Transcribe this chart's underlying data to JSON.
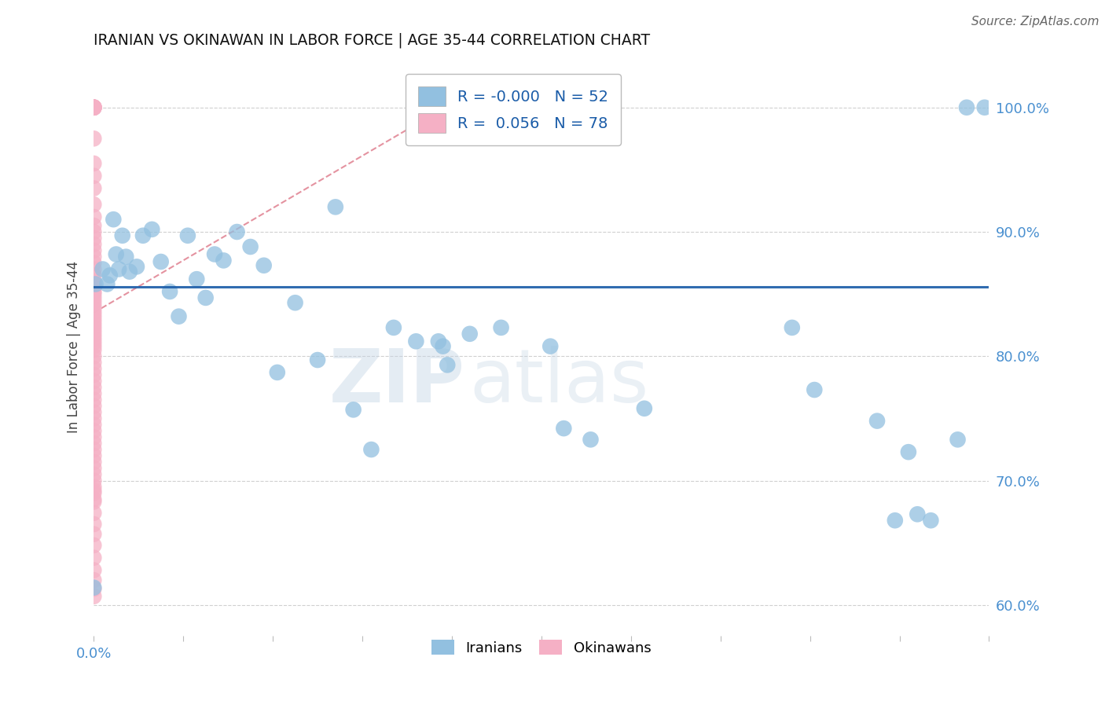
{
  "title": "IRANIAN VS OKINAWAN IN LABOR FORCE | AGE 35-44 CORRELATION CHART",
  "source": "Source: ZipAtlas.com",
  "ylabel": "In Labor Force | Age 35-44",
  "watermark_text": "ZIPatlas",
  "y_tick_positions": [
    0.6,
    0.7,
    0.8,
    0.9,
    1.0
  ],
  "y_tick_labels": [
    "60.0%",
    "70.0%",
    "80.0%",
    "90.0%",
    "100.0%"
  ],
  "x_tick_label_left": "0.0%",
  "x_tick_label_right": "",
  "xlim": [
    0.0,
    1.0
  ],
  "ylim": [
    0.575,
    1.04
  ],
  "legend_blue_r": "-0.000",
  "legend_blue_n": "52",
  "legend_pink_r": "0.056",
  "legend_pink_n": "78",
  "blue_color": "#92c0e0",
  "pink_color": "#f5b0c5",
  "blue_line_color": "#1a5ca8",
  "pink_line_color": "#e08090",
  "grid_color": "#d0d0d0",
  "title_color": "#111111",
  "tick_label_color": "#4a90d0",
  "blue_hline_y": 0.856,
  "pink_trend_x0": 0.0,
  "pink_trend_y0": 0.835,
  "pink_trend_x1": 0.44,
  "pink_trend_y1": 1.02,
  "blue_x": [
    0.0,
    0.002,
    0.01,
    0.015,
    0.018,
    0.022,
    0.025,
    0.028,
    0.032,
    0.036,
    0.04,
    0.048,
    0.055,
    0.065,
    0.075,
    0.085,
    0.095,
    0.105,
    0.115,
    0.125,
    0.135,
    0.145,
    0.16,
    0.175,
    0.19,
    0.205,
    0.225,
    0.25,
    0.27,
    0.29,
    0.31,
    0.335,
    0.36,
    0.385,
    0.39,
    0.395,
    0.42,
    0.455,
    0.51,
    0.525,
    0.555,
    0.615,
    0.78,
    0.805,
    0.875,
    0.895,
    0.91,
    0.92,
    0.935,
    0.965,
    0.975,
    0.995
  ],
  "blue_y": [
    0.614,
    0.858,
    0.87,
    0.858,
    0.865,
    0.91,
    0.882,
    0.87,
    0.897,
    0.88,
    0.868,
    0.872,
    0.897,
    0.902,
    0.876,
    0.852,
    0.832,
    0.897,
    0.862,
    0.847,
    0.882,
    0.877,
    0.9,
    0.888,
    0.873,
    0.787,
    0.843,
    0.797,
    0.92,
    0.757,
    0.725,
    0.823,
    0.812,
    0.812,
    0.808,
    0.793,
    0.818,
    0.823,
    0.808,
    0.742,
    0.733,
    0.758,
    0.823,
    0.773,
    0.748,
    0.668,
    0.723,
    0.673,
    0.668,
    0.733,
    1.0,
    1.0
  ],
  "pink_x": [
    0.0,
    0.0,
    0.0,
    0.0,
    0.0,
    0.0,
    0.0,
    0.0,
    0.0,
    0.0,
    0.0,
    0.0,
    0.0,
    0.0,
    0.0,
    0.0,
    0.0,
    0.0,
    0.0,
    0.0,
    0.0,
    0.0,
    0.0,
    0.0,
    0.0,
    0.0,
    0.0,
    0.0,
    0.0,
    0.0,
    0.0,
    0.0,
    0.0,
    0.0,
    0.0,
    0.0,
    0.0,
    0.0,
    0.0,
    0.0,
    0.0,
    0.0,
    0.0,
    0.0,
    0.0,
    0.0,
    0.0,
    0.0,
    0.0,
    0.0,
    0.0,
    0.0,
    0.0,
    0.0,
    0.0,
    0.0,
    0.0,
    0.0,
    0.0,
    0.0,
    0.0,
    0.0,
    0.0,
    0.0,
    0.0,
    0.0,
    0.0,
    0.0,
    0.0,
    0.0,
    0.0,
    0.0,
    0.0,
    0.0,
    0.0,
    0.0,
    0.0,
    0.0
  ],
  "pink_y": [
    1.0,
    1.0,
    1.0,
    1.0,
    1.0,
    1.0,
    1.0,
    1.0,
    0.975,
    0.955,
    0.945,
    0.935,
    0.922,
    0.912,
    0.905,
    0.9,
    0.895,
    0.89,
    0.885,
    0.88,
    0.875,
    0.87,
    0.865,
    0.86,
    0.858,
    0.855,
    0.852,
    0.85,
    0.847,
    0.844,
    0.841,
    0.838,
    0.835,
    0.832,
    0.829,
    0.826,
    0.823,
    0.82,
    0.817,
    0.814,
    0.811,
    0.808,
    0.805,
    0.8,
    0.795,
    0.79,
    0.785,
    0.78,
    0.775,
    0.77,
    0.765,
    0.76,
    0.755,
    0.75,
    0.745,
    0.74,
    0.735,
    0.73,
    0.725,
    0.72,
    0.715,
    0.71,
    0.705,
    0.7,
    0.695,
    0.69,
    0.683,
    0.674,
    0.665,
    0.657,
    0.648,
    0.638,
    0.628,
    0.62,
    0.613,
    0.607,
    0.685,
    0.692
  ]
}
